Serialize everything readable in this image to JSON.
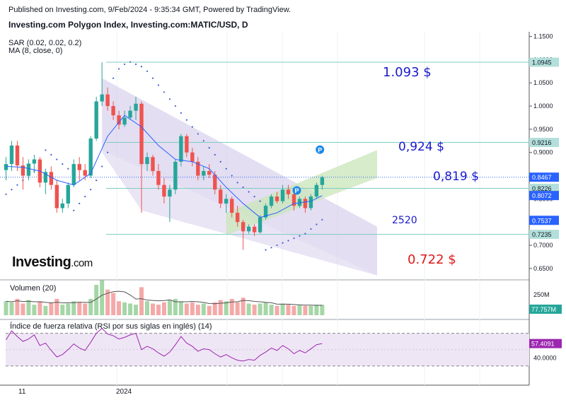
{
  "header": {
    "published": "Published on Investing.com, 9/Feb/2024 - 9:35:34 GMT, Powered by TradingView.",
    "title": "Investing.com Polygon Index, Investing.com:MATIC/USD, D",
    "sar_label": "SAR (0.02, 0.02, 0.2)",
    "ma_label": "MA (8, close, 0)"
  },
  "logo": {
    "name": "Investing",
    "suffix": ".com"
  },
  "annotations": {
    "a1": {
      "text": "1.093 $",
      "color": "#1a1acc"
    },
    "a2": {
      "text": "0,924 $",
      "color": "#1a1acc"
    },
    "a3": {
      "text": "0,819 $",
      "color": "#1a1acc"
    },
    "a4": {
      "text": "2520",
      "color": "#1a1acc"
    },
    "a5": {
      "text": "0.722 $",
      "color": "#e01a1a"
    }
  },
  "colors": {
    "up": "#26a69a",
    "down": "#ef5350",
    "channel_down": "#d8d0ec",
    "channel_up": "#c9e6b8",
    "sar": "#3b5bd6",
    "ma": "#2962ff",
    "rsi": "#9c27b0",
    "rsi_band": "#efe6f5"
  },
  "chart_data": {
    "type": "candlestick",
    "symbol": "MATIC/USD",
    "timeframe": "D",
    "price_axis": {
      "ticks": [
        "1.1500",
        "1.1000",
        "1.0500",
        "1.0000",
        "0.9500",
        "0.9000",
        "0.8500",
        "0.8000",
        "0.7500",
        "0.7000",
        "0.6500"
      ],
      "range": [
        0.63,
        1.16
      ]
    },
    "price_labels": [
      {
        "text": "1.0945",
        "value": 1.0945,
        "bg": "#b2dfdb",
        "fg": "#131722"
      },
      {
        "text": "0.9216",
        "value": 0.9216,
        "bg": "#b2dfdb",
        "fg": "#131722"
      },
      {
        "text": "0.8467",
        "value": 0.8467,
        "bg": "#2962ff",
        "fg": "#ffffff"
      },
      {
        "text": "0.8226",
        "value": 0.8226,
        "bg": "#b2dfdb",
        "fg": "#131722"
      },
      {
        "text": "0.8072",
        "value": 0.8072,
        "bg": "#2962ff",
        "fg": "#ffffff"
      },
      {
        "text": "0.7537",
        "value": 0.7537,
        "bg": "#2962ff",
        "fg": "#ffffff"
      },
      {
        "text": "0.7235",
        "value": 0.7235,
        "bg": "#b2dfdb",
        "fg": "#131722"
      }
    ],
    "horizontal_levels": [
      1.0945,
      0.9216,
      0.8226,
      0.7235
    ],
    "x_labels": [
      {
        "text": "11",
        "index": 0
      },
      {
        "text": "2024",
        "index": 21
      }
    ],
    "candles": [
      [
        0.862,
        0.89,
        0.84,
        0.875
      ],
      [
        0.875,
        0.925,
        0.86,
        0.915
      ],
      [
        0.915,
        0.925,
        0.86,
        0.872
      ],
      [
        0.872,
        0.89,
        0.82,
        0.85
      ],
      [
        0.85,
        0.885,
        0.84,
        0.876
      ],
      [
        0.876,
        0.895,
        0.855,
        0.885
      ],
      [
        0.885,
        0.89,
        0.825,
        0.835
      ],
      [
        0.835,
        0.865,
        0.81,
        0.858
      ],
      [
        0.858,
        0.87,
        0.82,
        0.83
      ],
      [
        0.83,
        0.84,
        0.77,
        0.78
      ],
      [
        0.78,
        0.8,
        0.77,
        0.79
      ],
      [
        0.79,
        0.835,
        0.78,
        0.83
      ],
      [
        0.83,
        0.885,
        0.825,
        0.875
      ],
      [
        0.875,
        0.89,
        0.84,
        0.862
      ],
      [
        0.862,
        0.875,
        0.84,
        0.85
      ],
      [
        0.85,
        0.935,
        0.845,
        0.93
      ],
      [
        0.93,
        1.02,
        0.925,
        1.01
      ],
      [
        1.01,
        1.0945,
        1.0,
        1.025
      ],
      [
        1.025,
        1.04,
        0.99,
        1.0
      ],
      [
        1.0,
        1.01,
        0.97,
        0.98
      ],
      [
        0.98,
        0.99,
        0.95,
        0.96
      ],
      [
        0.96,
        0.99,
        0.955,
        0.975
      ],
      [
        0.975,
        1.0,
        0.97,
        0.99
      ],
      [
        0.99,
        1.02,
        0.97,
        1.005
      ],
      [
        1.005,
        1.01,
        0.77,
        0.875
      ],
      [
        0.875,
        0.9,
        0.86,
        0.89
      ],
      [
        0.89,
        0.895,
        0.85,
        0.86
      ],
      [
        0.86,
        0.875,
        0.82,
        0.83
      ],
      [
        0.83,
        0.845,
        0.79,
        0.805
      ],
      [
        0.805,
        0.83,
        0.75,
        0.82
      ],
      [
        0.82,
        0.885,
        0.81,
        0.88
      ],
      [
        0.88,
        0.94,
        0.87,
        0.935
      ],
      [
        0.935,
        0.94,
        0.89,
        0.9
      ],
      [
        0.9,
        0.91,
        0.87,
        0.88
      ],
      [
        0.88,
        0.89,
        0.84,
        0.85
      ],
      [
        0.85,
        0.87,
        0.84,
        0.86
      ],
      [
        0.86,
        0.875,
        0.845,
        0.852
      ],
      [
        0.852,
        0.86,
        0.81,
        0.82
      ],
      [
        0.82,
        0.83,
        0.78,
        0.79
      ],
      [
        0.79,
        0.81,
        0.77,
        0.8
      ],
      [
        0.8,
        0.805,
        0.76,
        0.77
      ],
      [
        0.77,
        0.785,
        0.74,
        0.75
      ],
      [
        0.75,
        0.755,
        0.69,
        0.73
      ],
      [
        0.73,
        0.745,
        0.725,
        0.74
      ],
      [
        0.74,
        0.745,
        0.72,
        0.728
      ],
      [
        0.728,
        0.765,
        0.725,
        0.76
      ],
      [
        0.76,
        0.79,
        0.755,
        0.785
      ],
      [
        0.785,
        0.81,
        0.78,
        0.805
      ],
      [
        0.805,
        0.815,
        0.79,
        0.795
      ],
      [
        0.795,
        0.83,
        0.79,
        0.82
      ],
      [
        0.82,
        0.83,
        0.8,
        0.81
      ],
      [
        0.81,
        0.82,
        0.775,
        0.785
      ],
      [
        0.785,
        0.805,
        0.78,
        0.8
      ],
      [
        0.8,
        0.805,
        0.77,
        0.78
      ],
      [
        0.78,
        0.81,
        0.775,
        0.805
      ],
      [
        0.805,
        0.835,
        0.8,
        0.83
      ],
      [
        0.83,
        0.85,
        0.82,
        0.846
      ]
    ],
    "sar": [
      [
        0,
        0.81
      ],
      [
        1,
        0.82
      ],
      [
        2,
        0.83
      ],
      [
        3,
        0.84
      ],
      [
        4,
        0.85
      ],
      [
        5,
        0.86
      ],
      [
        6,
        0.87
      ],
      [
        7,
        0.905
      ],
      [
        8,
        0.895
      ],
      [
        9,
        0.885
      ],
      [
        10,
        0.875
      ],
      [
        11,
        0.865
      ],
      [
        12,
        0.775
      ],
      [
        13,
        0.79
      ],
      [
        14,
        0.805
      ],
      [
        15,
        0.82
      ],
      [
        16,
        0.84
      ],
      [
        17,
        0.87
      ],
      [
        18,
        0.9
      ],
      [
        19,
        1.06
      ],
      [
        20,
        1.08
      ],
      [
        21,
        1.09
      ],
      [
        22,
        1.095
      ],
      [
        23,
        1.09
      ],
      [
        24,
        1.085
      ],
      [
        25,
        1.075
      ],
      [
        26,
        1.06
      ],
      [
        27,
        1.045
      ],
      [
        28,
        1.03
      ],
      [
        29,
        1.015
      ],
      [
        30,
        1.0
      ],
      [
        31,
        0.985
      ],
      [
        32,
        0.97
      ],
      [
        33,
        0.955
      ],
      [
        34,
        0.94
      ],
      [
        35,
        0.925
      ],
      [
        36,
        0.91
      ],
      [
        37,
        0.895
      ],
      [
        38,
        0.88
      ],
      [
        39,
        0.865
      ],
      [
        40,
        0.85
      ],
      [
        41,
        0.835
      ],
      [
        42,
        0.825
      ],
      [
        43,
        0.815
      ],
      [
        44,
        0.805
      ],
      [
        45,
        0.795
      ],
      [
        46,
        0.69
      ],
      [
        47,
        0.695
      ],
      [
        48,
        0.7
      ],
      [
        49,
        0.705
      ],
      [
        50,
        0.71
      ],
      [
        51,
        0.715
      ],
      [
        52,
        0.72
      ],
      [
        53,
        0.725
      ],
      [
        54,
        0.735
      ],
      [
        55,
        0.745
      ],
      [
        56,
        0.755
      ]
    ],
    "ma": [
      [
        0,
        0.87
      ],
      [
        3,
        0.868
      ],
      [
        6,
        0.86
      ],
      [
        9,
        0.84
      ],
      [
        12,
        0.83
      ],
      [
        15,
        0.855
      ],
      [
        18,
        0.935
      ],
      [
        21,
        0.98
      ],
      [
        24,
        0.955
      ],
      [
        27,
        0.915
      ],
      [
        30,
        0.885
      ],
      [
        33,
        0.88
      ],
      [
        36,
        0.865
      ],
      [
        39,
        0.825
      ],
      [
        42,
        0.79
      ],
      [
        45,
        0.76
      ],
      [
        48,
        0.77
      ],
      [
        51,
        0.79
      ],
      [
        54,
        0.795
      ],
      [
        56,
        0.807
      ]
    ],
    "volume": {
      "title": "Volumen (20)",
      "label": "77.757M",
      "ticks": [
        "250M"
      ],
      "max": 300,
      "values": [
        60,
        55,
        70,
        50,
        65,
        45,
        60,
        40,
        55,
        70,
        45,
        50,
        60,
        55,
        50,
        70,
        130,
        150,
        110,
        95,
        60,
        55,
        50,
        45,
        120,
        60,
        50,
        45,
        55,
        65,
        70,
        60,
        50,
        55,
        45,
        50,
        40,
        55,
        65,
        60,
        70,
        55,
        75,
        50,
        45,
        50,
        55,
        45,
        40,
        50,
        45,
        40,
        45,
        40,
        40,
        45,
        45
      ]
    },
    "rsi": {
      "title": "Índice de fuerza relativa (RSI por sus siglas en inglés) (14)",
      "label": "57.4091",
      "ticks": [
        "40.0000"
      ],
      "values": [
        62,
        73,
        66,
        60,
        63,
        68,
        55,
        58,
        49,
        41,
        44,
        50,
        57,
        52,
        49,
        59,
        70,
        76,
        69,
        67,
        63,
        65,
        68,
        70,
        50,
        54,
        51,
        46,
        42,
        47,
        56,
        66,
        58,
        54,
        48,
        51,
        50,
        45,
        41,
        44,
        40,
        37,
        36,
        38,
        37,
        43,
        47,
        52,
        49,
        55,
        51,
        45,
        49,
        46,
        51,
        56,
        57.4
      ]
    }
  }
}
